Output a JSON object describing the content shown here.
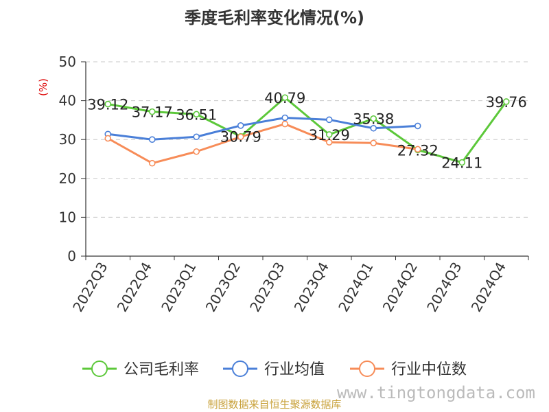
{
  "chart_data": {
    "type": "line",
    "title": "季度毛利率变化情况(%)",
    "ylabel": "(%)",
    "ylim": [
      0,
      50
    ],
    "yticks": [
      0,
      10,
      20,
      30,
      40,
      50
    ],
    "grid": "horizontal-dashed",
    "legend_position": "bottom",
    "categories": [
      "2022Q3",
      "2022Q4",
      "2023Q1",
      "2023Q2",
      "2023Q3",
      "2023Q4",
      "2024Q1",
      "2024Q2",
      "2024Q3",
      "2024Q4"
    ],
    "series": [
      {
        "name": "公司毛利率",
        "color": "#5cc83a",
        "values": [
          39.12,
          37.17,
          36.51,
          30.79,
          40.79,
          31.29,
          35.38,
          27.32,
          24.11,
          39.76
        ],
        "labels": [
          "39.12",
          "37.17",
          "36.51",
          "30.79",
          "40.79",
          "31.29",
          "35.38",
          "27.32",
          "24.11",
          "39.76"
        ]
      },
      {
        "name": "行业均值",
        "color": "#4a7fd8",
        "values": [
          31.4,
          30.0,
          30.7,
          33.6,
          35.6,
          35.1,
          32.9,
          33.5,
          null,
          null
        ]
      },
      {
        "name": "行业中位数",
        "color": "#f78c58",
        "values": [
          30.3,
          23.9,
          26.9,
          30.7,
          34.0,
          29.3,
          29.1,
          27.5,
          null,
          null
        ]
      }
    ]
  },
  "footer": {
    "source_text": "制图数据来自恒生聚源数据库",
    "source_color": "#c8a13a",
    "watermark": "www.tingtongdata.com"
  }
}
